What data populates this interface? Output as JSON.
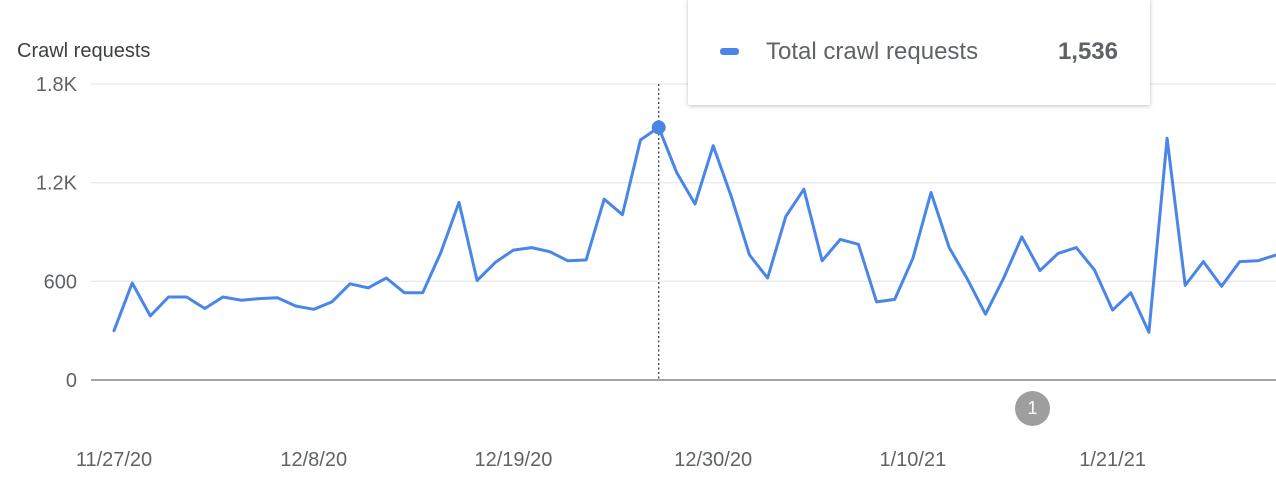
{
  "chart_data": {
    "type": "line",
    "ylabel": "Crawl requests",
    "y_ticks": [
      "1.8K",
      "1.2K",
      "600",
      "0"
    ],
    "ylim": [
      0,
      1800
    ],
    "x_ticks": [
      "11/27/20",
      "12/8/20",
      "12/19/20",
      "12/30/20",
      "1/10/21",
      "1/21/21"
    ],
    "series": [
      {
        "name": "Total crawl requests",
        "color": "#4a86e8",
        "values": [
          300,
          590,
          390,
          505,
          505,
          435,
          505,
          485,
          495,
          500,
          450,
          430,
          475,
          585,
          560,
          620,
          530,
          530,
          775,
          1080,
          605,
          715,
          790,
          805,
          780,
          725,
          730,
          1100,
          1005,
          1460,
          1536,
          1260,
          1070,
          1425,
          1115,
          760,
          620,
          995,
          1160,
          725,
          855,
          825,
          475,
          490,
          740,
          1140,
          805,
          615,
          400,
          620,
          870,
          665,
          770,
          805,
          670,
          425,
          530,
          290,
          1470,
          575,
          720,
          570,
          720,
          725,
          760
        ]
      }
    ],
    "highlight": {
      "index": 30,
      "value_label": "1,536"
    },
    "annotation_label": "1"
  }
}
